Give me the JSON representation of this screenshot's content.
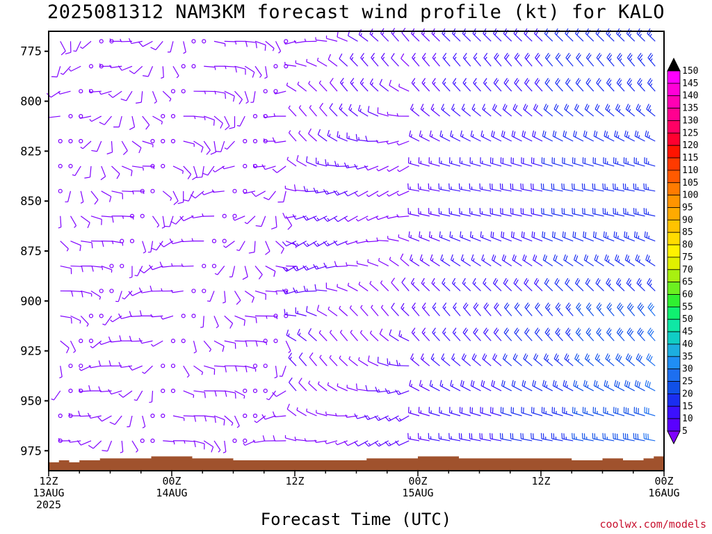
{
  "title": "2025081312 NAM3KM forecast wind profile (kt) for KALO",
  "credit": "coolwx.com/models",
  "chart_data": {
    "type": "wind-barb-profile",
    "xlabel": "Forecast Time (UTC)",
    "ylabel": "",
    "y_ticks": [
      775,
      800,
      825,
      850,
      875,
      900,
      925,
      950,
      975
    ],
    "ylim": [
      765,
      985
    ],
    "x_range_hours": [
      0,
      60
    ],
    "x_ticks": [
      {
        "hour": 0,
        "lines": [
          "12Z",
          "13AUG",
          "2025"
        ]
      },
      {
        "hour": 12,
        "lines": [
          "00Z",
          "14AUG"
        ]
      },
      {
        "hour": 24,
        "lines": [
          "12Z"
        ]
      },
      {
        "hour": 36,
        "lines": [
          "00Z",
          "15AUG"
        ]
      },
      {
        "hour": 48,
        "lines": [
          "12Z"
        ]
      },
      {
        "hour": 60,
        "lines": [
          "00Z",
          "16AUG"
        ]
      }
    ],
    "colorbar": {
      "levels": [
        5,
        10,
        15,
        20,
        25,
        30,
        35,
        40,
        45,
        50,
        55,
        60,
        65,
        70,
        75,
        80,
        85,
        90,
        95,
        100,
        105,
        110,
        115,
        120,
        125,
        130,
        135,
        140,
        145,
        150
      ],
      "colors": [
        "#7f00ff",
        "#5a00ff",
        "#3c10ff",
        "#1a2ef0",
        "#1050e8",
        "#1d6ff0",
        "#1f8ef5",
        "#1caee0",
        "#10cdc5",
        "#0fe7a5",
        "#10f070",
        "#30f030",
        "#6cf020",
        "#a8f010",
        "#e0f000",
        "#fff200",
        "#ffdc00",
        "#ffc300",
        "#ffaa00",
        "#ff9400",
        "#ff7b00",
        "#ff5a00",
        "#ff3a00",
        "#ff1400",
        "#ff0030",
        "#ff0064",
        "#ff0090",
        "#ff00b4",
        "#ff00d8",
        "#ff00ff"
      ]
    },
    "terrain_color": "#a0522d",
    "barb_columns_every_hours": 1,
    "barb_levels_every_hpa": 12.5,
    "low_level_barb_color": "#7f00ff",
    "strong_barb_color": "#1d6ff0"
  }
}
